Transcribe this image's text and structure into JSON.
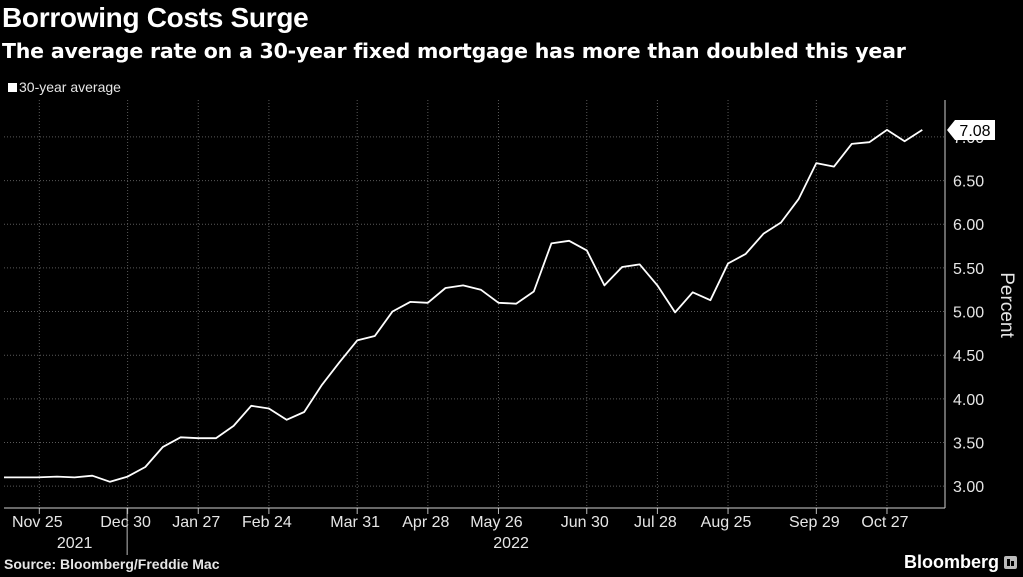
{
  "header": {
    "title": "Borrowing Costs Surge",
    "subtitle": "The average rate on a 30-year fixed mortgage has more than doubled this year"
  },
  "footer": {
    "source": "Source: Bloomberg/Freddie Mac",
    "brand": "Bloomberg"
  },
  "colors": {
    "background": "#000000",
    "line": "#ffffff",
    "grid": "#5a5a5a",
    "text": "#e6e6e6"
  },
  "chart_data": {
    "type": "line",
    "legend_position": "top-left",
    "grid": true,
    "ylabel": "Percent",
    "ylim": [
      2.75,
      7.4
    ],
    "y_ticks": [
      3.0,
      3.5,
      4.0,
      4.5,
      5.0,
      5.5,
      6.0,
      6.5,
      7.0
    ],
    "y_tick_labels": [
      "3.00",
      "3.50",
      "4.00",
      "4.50",
      "5.00",
      "5.50",
      "6.00",
      "6.50",
      "7.00"
    ],
    "x_tick_labels": [
      "Nov 25",
      "Dec 30",
      "Jan 27",
      "Feb 24",
      "Mar 31",
      "Apr 28",
      "May 26",
      "Jun 30",
      "Jul 28",
      "Aug 25",
      "Sep 29",
      "Oct 27"
    ],
    "x_ticks": [
      "2021-11-25",
      "2021-12-30",
      "2022-01-27",
      "2022-02-24",
      "2022-03-31",
      "2022-04-28",
      "2022-05-26",
      "2022-06-30",
      "2022-07-28",
      "2022-08-25",
      "2022-09-29",
      "2022-10-27"
    ],
    "x_group_labels": [
      {
        "label": "2021",
        "at": "2021-12-09"
      },
      {
        "label": "2022",
        "at": "2022-05-31"
      }
    ],
    "last_value_label": "7.08",
    "series": [
      {
        "name": "30-year average",
        "color": "#ffffff",
        "points": [
          [
            "2021-11-11",
            3.1
          ],
          [
            "2021-11-18",
            3.1
          ],
          [
            "2021-11-24",
            3.1
          ],
          [
            "2021-12-02",
            3.11
          ],
          [
            "2021-12-09",
            3.1
          ],
          [
            "2021-12-16",
            3.12
          ],
          [
            "2021-12-23",
            3.05
          ],
          [
            "2021-12-30",
            3.11
          ],
          [
            "2022-01-06",
            3.22
          ],
          [
            "2022-01-13",
            3.45
          ],
          [
            "2022-01-20",
            3.56
          ],
          [
            "2022-01-27",
            3.55
          ],
          [
            "2022-02-03",
            3.55
          ],
          [
            "2022-02-10",
            3.69
          ],
          [
            "2022-02-17",
            3.92
          ],
          [
            "2022-02-24",
            3.89
          ],
          [
            "2022-03-03",
            3.76
          ],
          [
            "2022-03-10",
            3.85
          ],
          [
            "2022-03-17",
            4.16
          ],
          [
            "2022-03-24",
            4.42
          ],
          [
            "2022-03-31",
            4.67
          ],
          [
            "2022-04-07",
            4.72
          ],
          [
            "2022-04-14",
            5.0
          ],
          [
            "2022-04-21",
            5.11
          ],
          [
            "2022-04-28",
            5.1
          ],
          [
            "2022-05-05",
            5.27
          ],
          [
            "2022-05-12",
            5.3
          ],
          [
            "2022-05-19",
            5.25
          ],
          [
            "2022-05-26",
            5.1
          ],
          [
            "2022-06-02",
            5.09
          ],
          [
            "2022-06-09",
            5.23
          ],
          [
            "2022-06-16",
            5.78
          ],
          [
            "2022-06-23",
            5.81
          ],
          [
            "2022-06-30",
            5.7
          ],
          [
            "2022-07-07",
            5.3
          ],
          [
            "2022-07-14",
            5.51
          ],
          [
            "2022-07-21",
            5.54
          ],
          [
            "2022-07-28",
            5.3
          ],
          [
            "2022-08-04",
            4.99
          ],
          [
            "2022-08-11",
            5.22
          ],
          [
            "2022-08-18",
            5.13
          ],
          [
            "2022-08-25",
            5.55
          ],
          [
            "2022-09-01",
            5.66
          ],
          [
            "2022-09-08",
            5.89
          ],
          [
            "2022-09-15",
            6.02
          ],
          [
            "2022-09-22",
            6.29
          ],
          [
            "2022-09-29",
            6.7
          ],
          [
            "2022-10-06",
            6.66
          ],
          [
            "2022-10-13",
            6.92
          ],
          [
            "2022-10-20",
            6.94
          ],
          [
            "2022-10-27",
            7.08
          ],
          [
            "2022-11-03",
            6.95
          ],
          [
            "2022-11-10",
            7.08
          ]
        ]
      }
    ]
  }
}
